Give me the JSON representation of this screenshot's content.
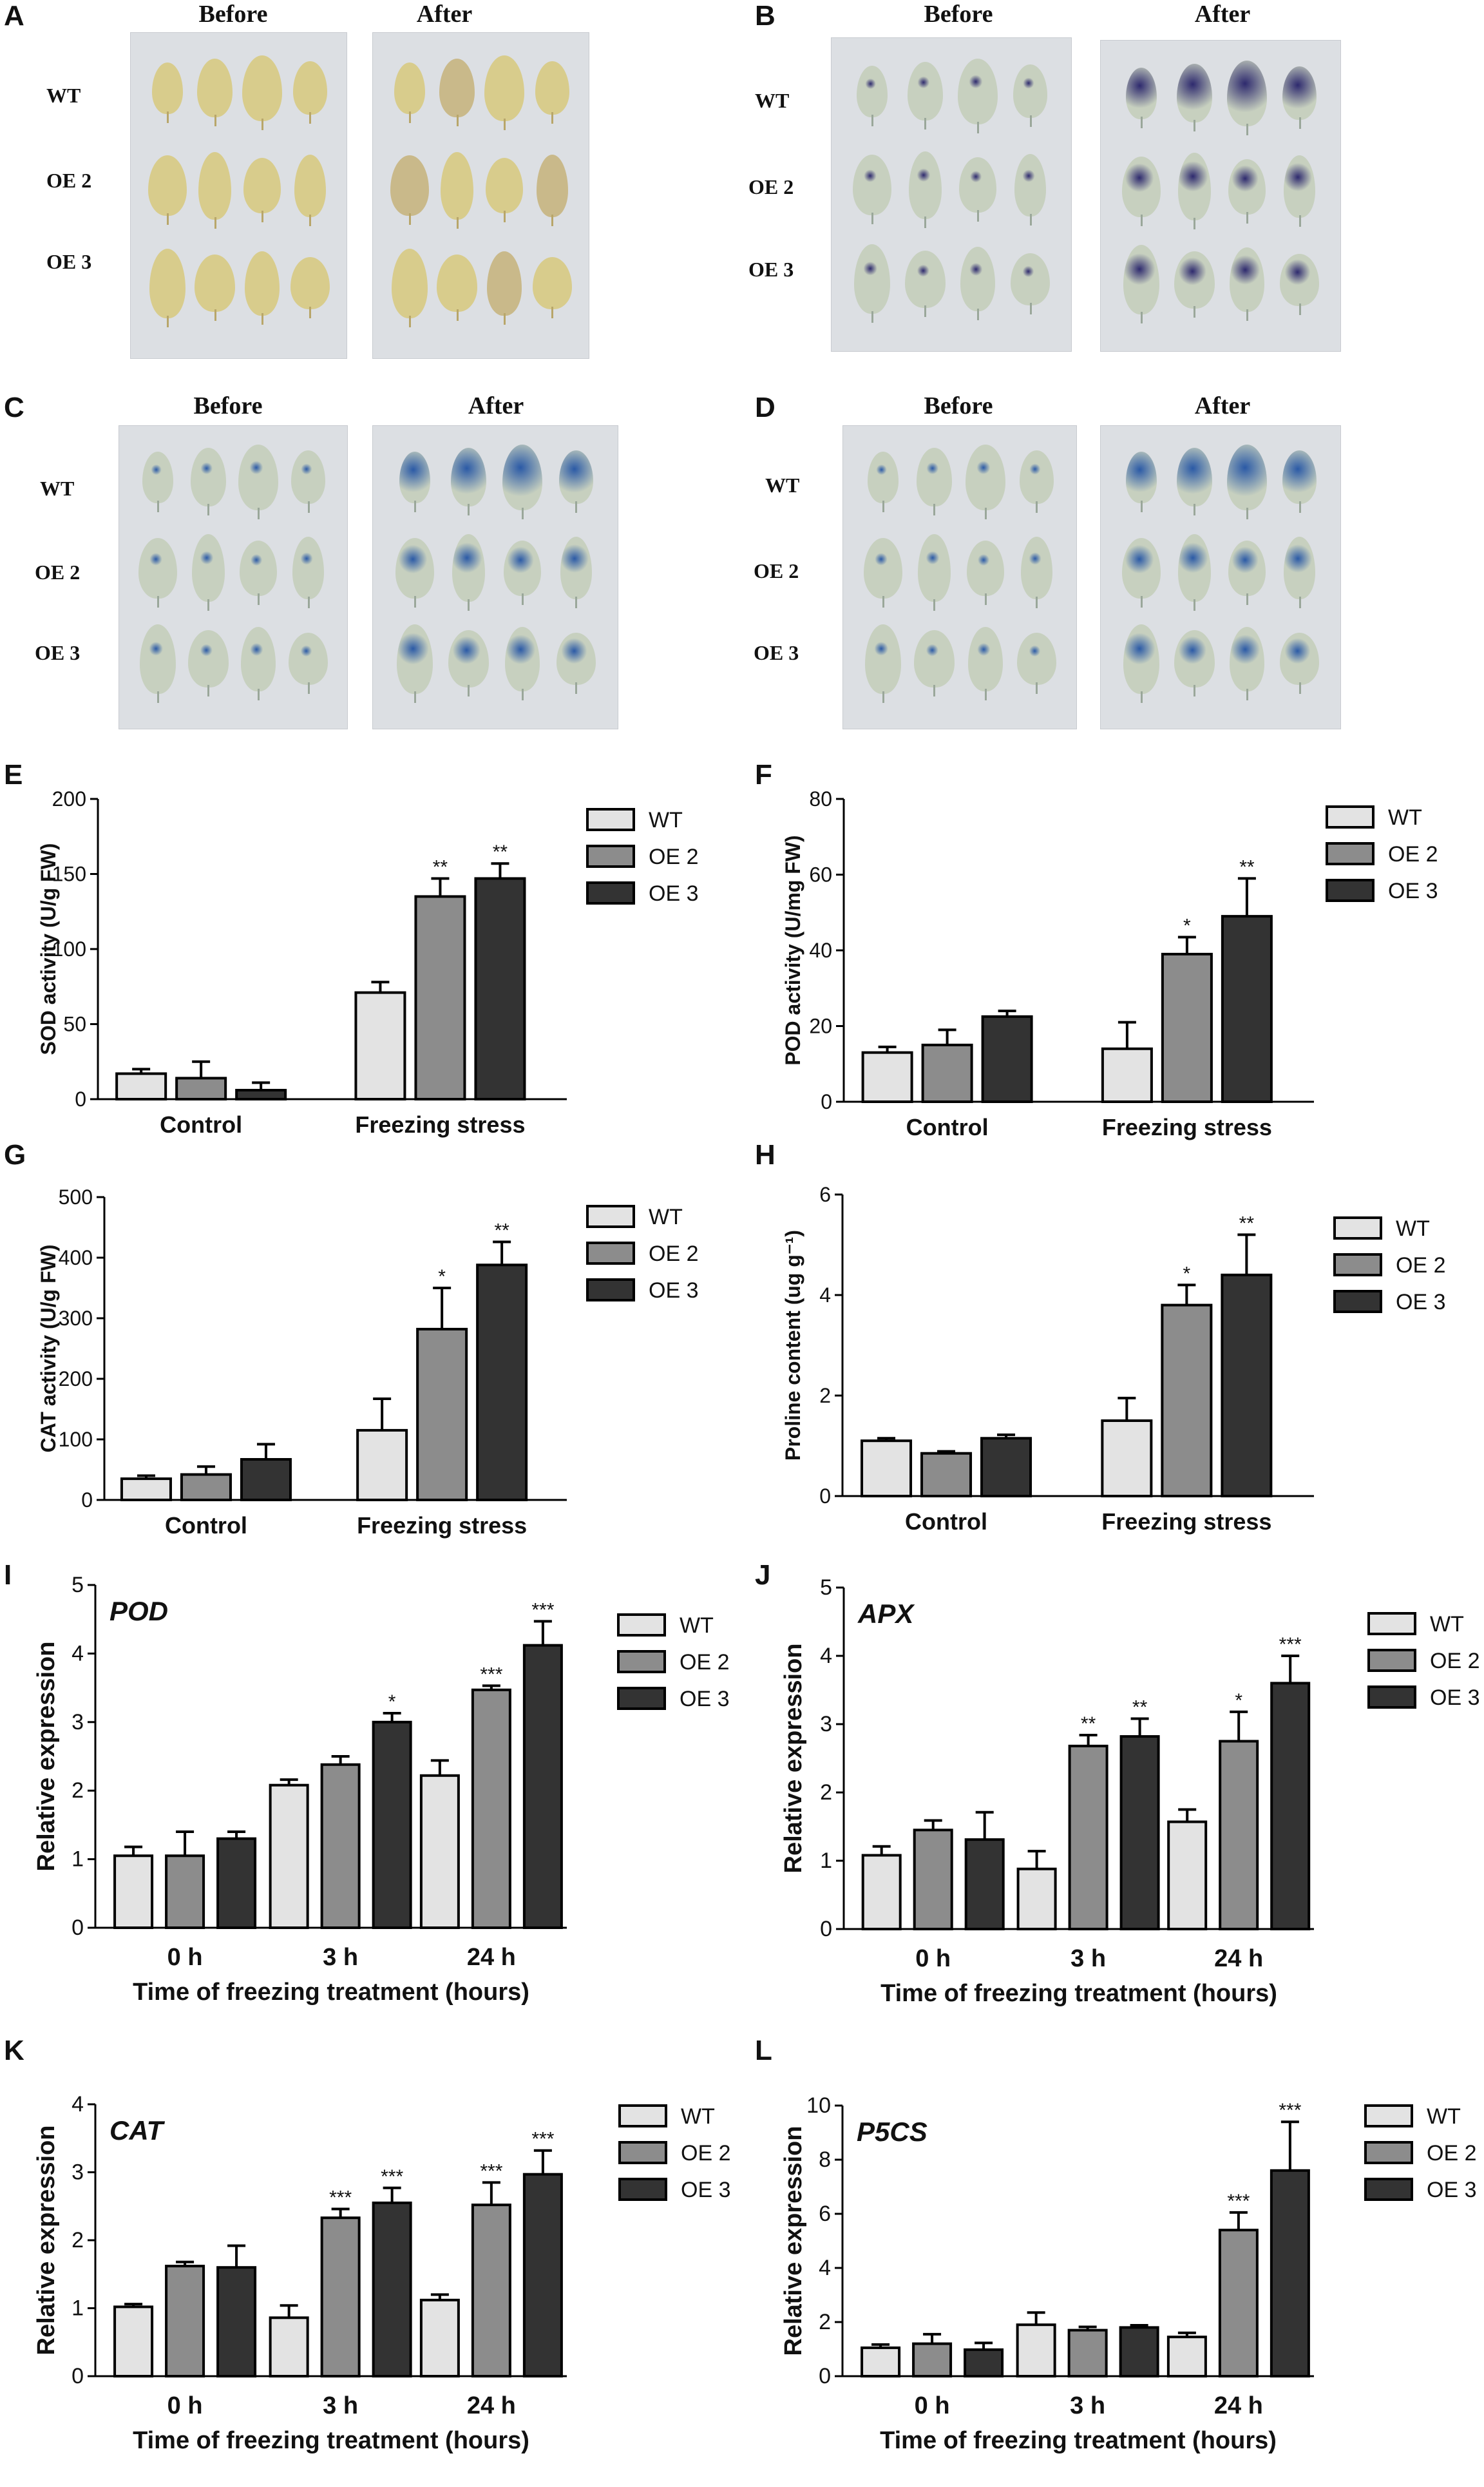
{
  "photo_panels": [
    {
      "label": "A",
      "before": "Before",
      "after": "After",
      "rows": [
        "WT",
        "OE 2",
        "OE 3"
      ],
      "stain": "yellow"
    },
    {
      "label": "B",
      "before": "Before",
      "after": "After",
      "rows": [
        "WT",
        "OE 2",
        "OE 3"
      ],
      "stain": "purple"
    },
    {
      "label": "C",
      "before": "Before",
      "after": "After",
      "rows": [
        "WT",
        "OE 2",
        "OE 3"
      ],
      "stain": "blue"
    },
    {
      "label": "D",
      "before": "Before",
      "after": "After",
      "rows": [
        "WT",
        "OE 2",
        "OE 3"
      ],
      "stain": "blue"
    }
  ],
  "colors": {
    "WT": "#e3e3e3",
    "OE 2": "#8c8c8c",
    "OE 3": "#333333",
    "yellow_leaf": "#d8cc8c",
    "purple_stain": "#2e2a6e",
    "blue_stain": "#2b5aa6",
    "photo_bg": "#dcdfe3"
  },
  "chart_data": [
    {
      "label": "E",
      "type": "bar",
      "ylabel": "SOD activity (U/g FW)",
      "xlabel": "",
      "gene": "",
      "categories": [
        "Control",
        "Freezing stress"
      ],
      "ylim": [
        0,
        200
      ],
      "yticks": [
        "0",
        "50",
        "100",
        "150",
        "200"
      ],
      "series": [
        {
          "name": "WT",
          "values": [
            17,
            71
          ],
          "errors": [
            3,
            7
          ],
          "sig": [
            "",
            ""
          ]
        },
        {
          "name": "OE 2",
          "values": [
            14,
            135
          ],
          "errors": [
            11,
            12
          ],
          "sig": [
            "",
            "**"
          ]
        },
        {
          "name": "OE 3",
          "values": [
            6,
            147
          ],
          "errors": [
            5,
            10
          ],
          "sig": [
            "",
            "**"
          ]
        }
      ]
    },
    {
      "label": "F",
      "type": "bar",
      "ylabel": "POD activity (U/mg FW)",
      "xlabel": "",
      "gene": "",
      "categories": [
        "Control",
        "Freezing stress"
      ],
      "ylim": [
        0,
        80
      ],
      "yticks": [
        "0",
        "20",
        "40",
        "60",
        "80"
      ],
      "series": [
        {
          "name": "WT",
          "values": [
            13,
            14
          ],
          "errors": [
            1.5,
            7
          ],
          "sig": [
            "",
            ""
          ]
        },
        {
          "name": "OE 2",
          "values": [
            15,
            39
          ],
          "errors": [
            4,
            4.5
          ],
          "sig": [
            "",
            "*"
          ]
        },
        {
          "name": "OE 3",
          "values": [
            22.5,
            49
          ],
          "errors": [
            1.5,
            10
          ],
          "sig": [
            "",
            "**"
          ]
        }
      ]
    },
    {
      "label": "G",
      "type": "bar",
      "ylabel": "CAT activity (U/g FW)",
      "xlabel": "",
      "gene": "",
      "categories": [
        "Control",
        "Freezing stress"
      ],
      "ylim": [
        0,
        500
      ],
      "yticks": [
        "0",
        "100",
        "200",
        "300",
        "400",
        "500"
      ],
      "series": [
        {
          "name": "WT",
          "values": [
            35,
            115
          ],
          "errors": [
            5,
            52
          ],
          "sig": [
            "",
            ""
          ]
        },
        {
          "name": "OE 2",
          "values": [
            42,
            282
          ],
          "errors": [
            13,
            68
          ],
          "sig": [
            "",
            "*"
          ]
        },
        {
          "name": "OE 3",
          "values": [
            67,
            388
          ],
          "errors": [
            25,
            38
          ],
          "sig": [
            "",
            "**"
          ]
        }
      ]
    },
    {
      "label": "H",
      "type": "bar",
      "ylabel": "Proline content (ug g⁻¹)",
      "xlabel": "",
      "gene": "",
      "categories": [
        "Control",
        "Freezing stress"
      ],
      "ylim": [
        0,
        6
      ],
      "yticks": [
        "0",
        "2",
        "4",
        "6"
      ],
      "series": [
        {
          "name": "WT",
          "values": [
            1.1,
            1.5
          ],
          "errors": [
            0.05,
            0.45
          ],
          "sig": [
            "",
            ""
          ]
        },
        {
          "name": "OE 2",
          "values": [
            0.85,
            3.8
          ],
          "errors": [
            0.04,
            0.4
          ],
          "sig": [
            "",
            "*"
          ]
        },
        {
          "name": "OE 3",
          "values": [
            1.15,
            4.4
          ],
          "errors": [
            0.07,
            0.8
          ],
          "sig": [
            "",
            "**"
          ]
        }
      ]
    },
    {
      "label": "I",
      "type": "bar",
      "ylabel": "Relative expression",
      "xlabel": "Time of freezing treatment (hours)",
      "gene": "POD",
      "categories": [
        "0 h",
        "3 h",
        "24 h"
      ],
      "ylim": [
        0,
        5
      ],
      "yticks": [
        "0",
        "1",
        "2",
        "3",
        "4",
        "5"
      ],
      "series": [
        {
          "name": "WT",
          "values": [
            1.05,
            2.08,
            2.22
          ],
          "errors": [
            0.13,
            0.08,
            0.22
          ],
          "sig": [
            "",
            "",
            ""
          ]
        },
        {
          "name": "OE 2",
          "values": [
            1.05,
            2.38,
            3.47
          ],
          "errors": [
            0.35,
            0.12,
            0.06
          ],
          "sig": [
            "",
            "",
            "***"
          ]
        },
        {
          "name": "OE 3",
          "values": [
            1.3,
            3.0,
            4.12
          ],
          "errors": [
            0.1,
            0.13,
            0.35
          ],
          "sig": [
            "",
            "*",
            "***"
          ]
        }
      ]
    },
    {
      "label": "J",
      "type": "bar",
      "ylabel": "Relative expression",
      "xlabel": "Time of freezing treatment (hours)",
      "gene": "APX",
      "categories": [
        "0 h",
        "3 h",
        "24 h"
      ],
      "ylim": [
        0,
        5
      ],
      "yticks": [
        "0",
        "1",
        "2",
        "3",
        "4",
        "5"
      ],
      "series": [
        {
          "name": "WT",
          "values": [
            1.08,
            0.88,
            1.57
          ],
          "errors": [
            0.13,
            0.26,
            0.18
          ],
          "sig": [
            "",
            "",
            ""
          ]
        },
        {
          "name": "OE 2",
          "values": [
            1.45,
            2.68,
            2.75
          ],
          "errors": [
            0.14,
            0.16,
            0.43
          ],
          "sig": [
            "",
            "**",
            "*"
          ]
        },
        {
          "name": "OE 3",
          "values": [
            1.31,
            2.82,
            3.6
          ],
          "errors": [
            0.4,
            0.26,
            0.4
          ],
          "sig": [
            "",
            "**",
            "***"
          ]
        }
      ]
    },
    {
      "label": "K",
      "type": "bar",
      "ylabel": "Relative expression",
      "xlabel": "Time of freezing treatment (hours)",
      "gene": "CAT",
      "categories": [
        "0 h",
        "3 h",
        "24 h"
      ],
      "ylim": [
        0,
        4
      ],
      "yticks": [
        "0",
        "1",
        "2",
        "3",
        "4"
      ],
      "series": [
        {
          "name": "WT",
          "values": [
            1.02,
            0.86,
            1.12
          ],
          "errors": [
            0.04,
            0.18,
            0.08
          ],
          "sig": [
            "",
            "",
            ""
          ]
        },
        {
          "name": "OE 2",
          "values": [
            1.62,
            2.33,
            2.52
          ],
          "errors": [
            0.06,
            0.13,
            0.33
          ],
          "sig": [
            "",
            "***",
            "***"
          ]
        },
        {
          "name": "OE 3",
          "values": [
            1.6,
            2.55,
            2.97
          ],
          "errors": [
            0.32,
            0.22,
            0.35
          ],
          "sig": [
            "",
            "***",
            "***"
          ]
        }
      ]
    },
    {
      "label": "L",
      "type": "bar",
      "ylabel": "Relative expression",
      "xlabel": "Time of freezing treatment (hours)",
      "gene": "P5CS",
      "categories": [
        "0 h",
        "3 h",
        "24 h"
      ],
      "ylim": [
        0,
        10
      ],
      "yticks": [
        "0",
        "2",
        "4",
        "6",
        "8",
        "10"
      ],
      "series": [
        {
          "name": "WT",
          "values": [
            1.05,
            1.9,
            1.45
          ],
          "errors": [
            0.12,
            0.45,
            0.15
          ],
          "sig": [
            "",
            "",
            ""
          ]
        },
        {
          "name": "OE 2",
          "values": [
            1.2,
            1.7,
            5.4
          ],
          "errors": [
            0.35,
            0.12,
            0.65
          ],
          "sig": [
            "",
            "",
            "***"
          ]
        },
        {
          "name": "OE 3",
          "values": [
            0.98,
            1.8,
            7.6
          ],
          "errors": [
            0.25,
            0.08,
            1.8
          ],
          "sig": [
            "",
            "",
            "***"
          ]
        }
      ]
    }
  ]
}
